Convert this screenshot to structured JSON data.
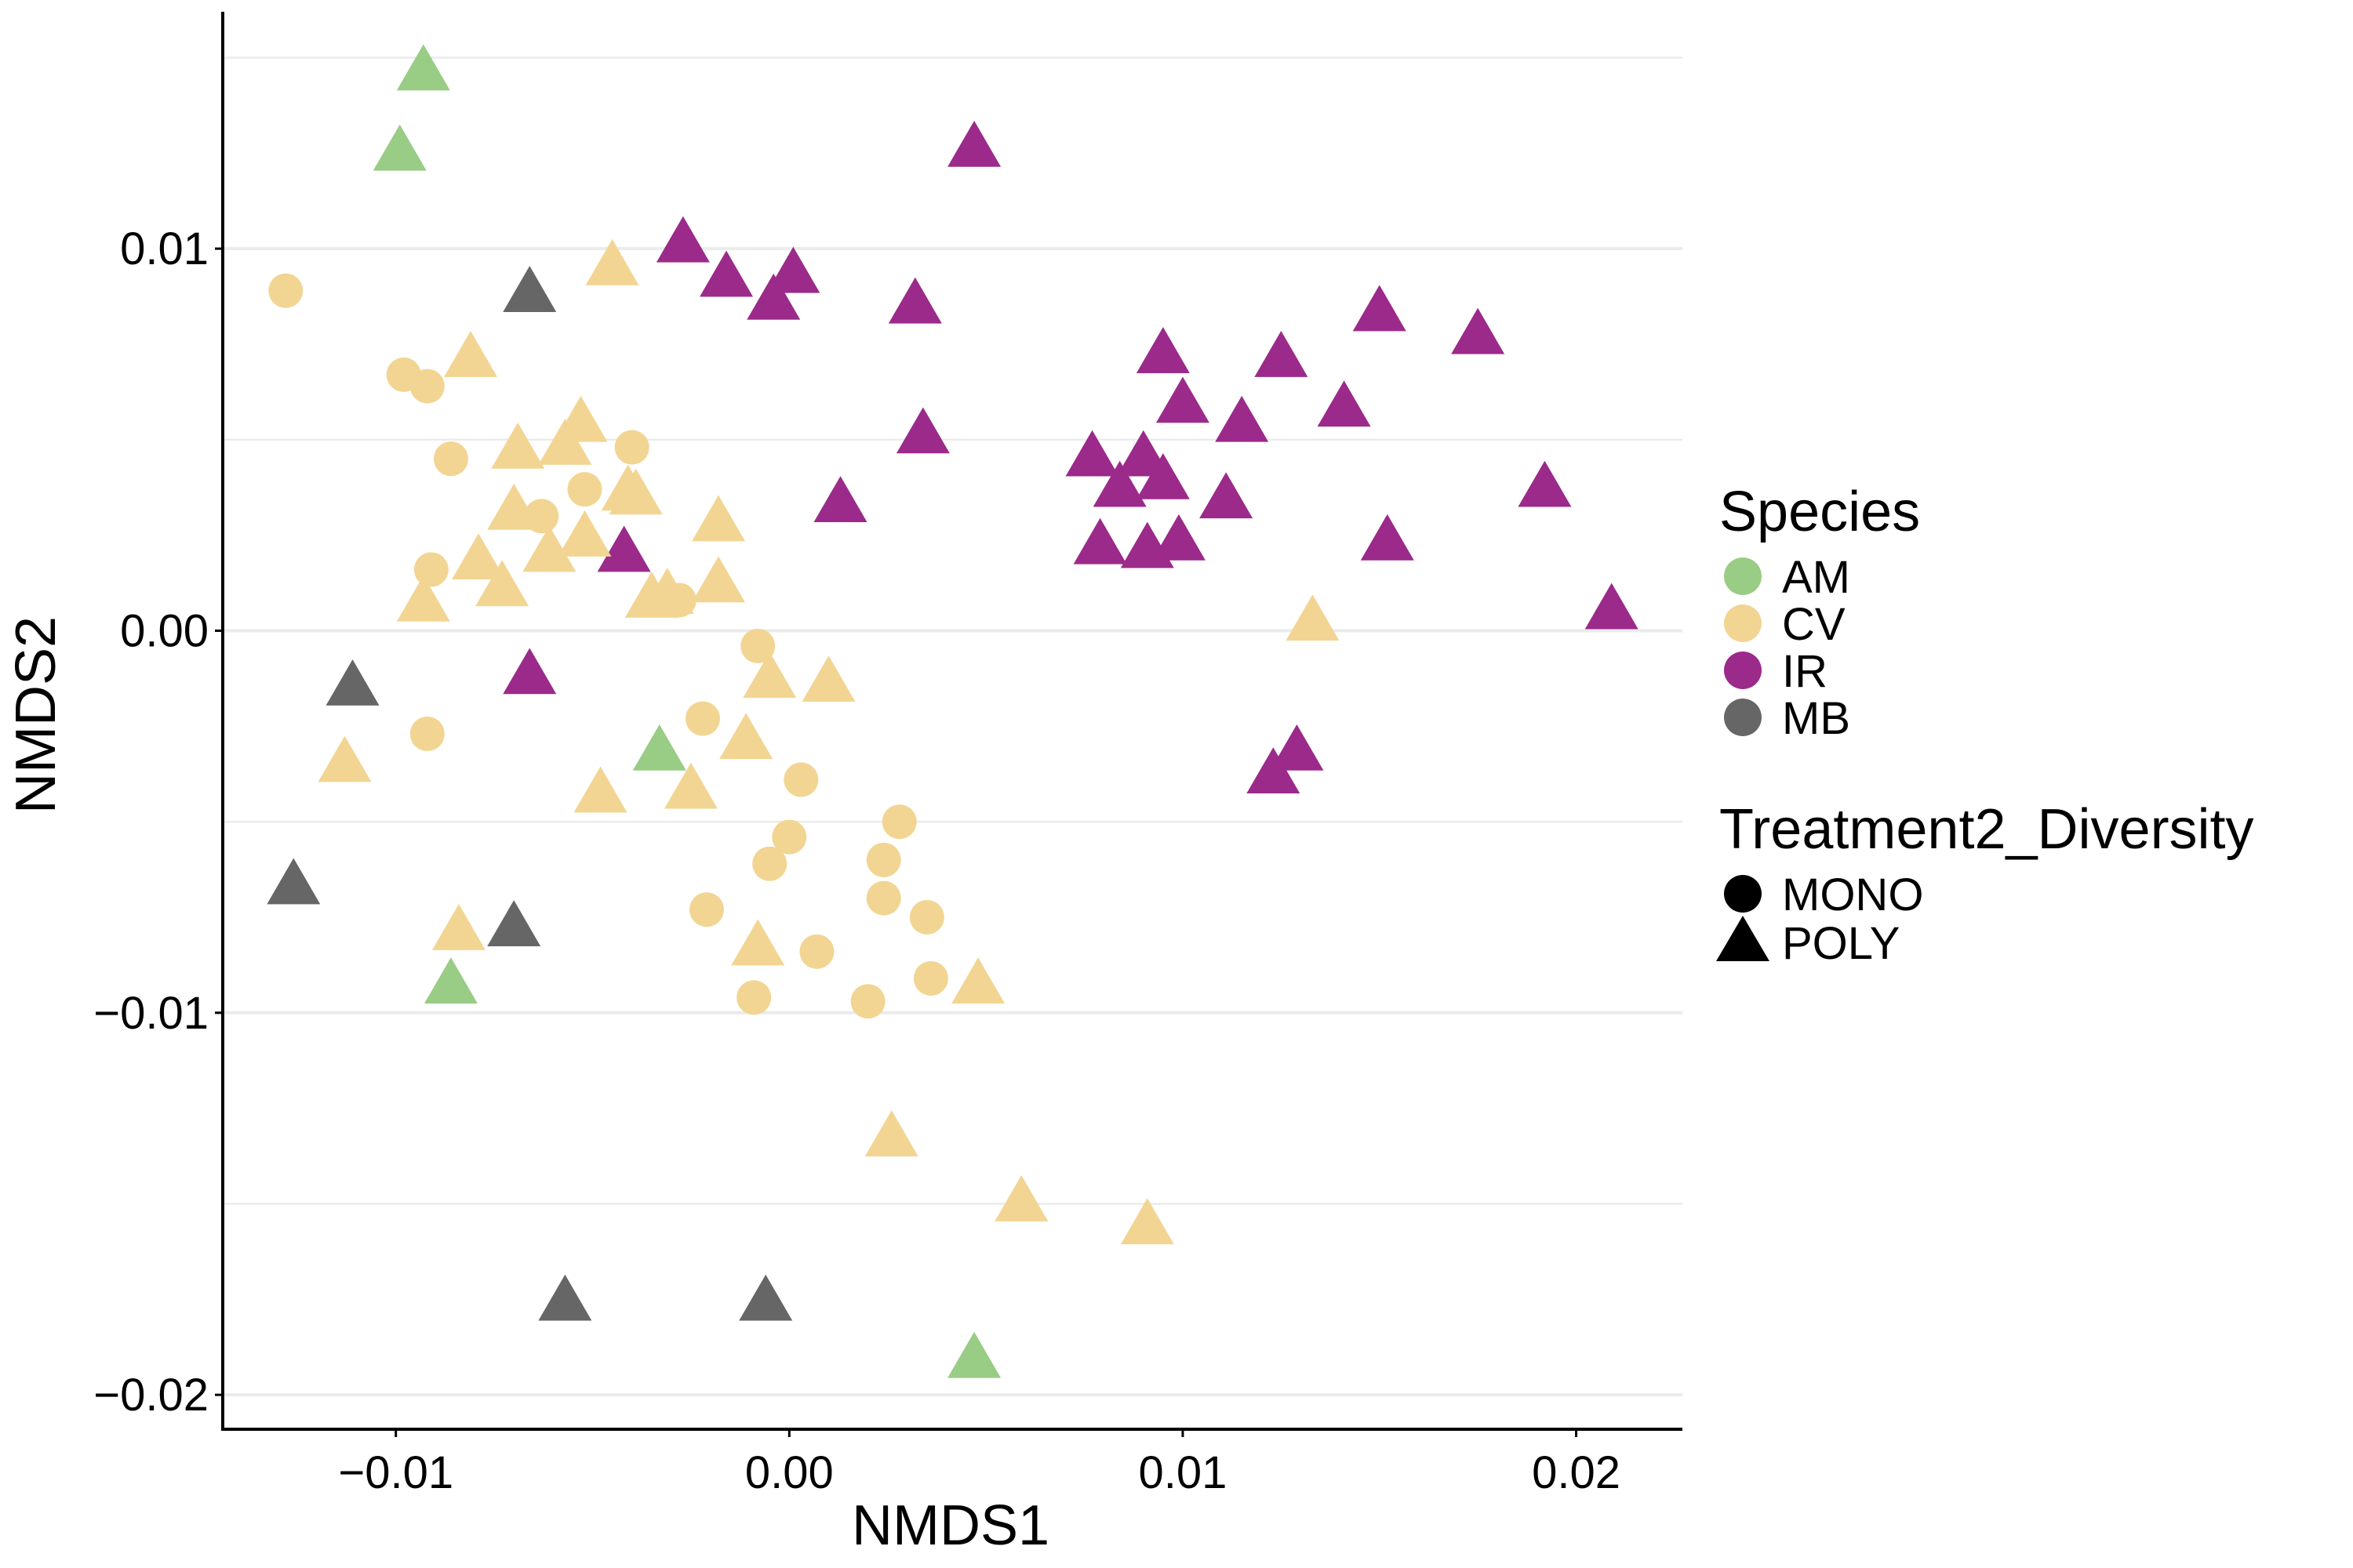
{
  "chart_data": {
    "type": "scatter",
    "title": "",
    "xlabel": "NMDS1",
    "ylabel": "NMDS2",
    "xlim": [
      -0.0144,
      0.0227
    ],
    "ylim": [
      -0.0209,
      0.0162
    ],
    "x_ticks": [
      -0.01,
      0.0,
      0.01,
      0.02
    ],
    "x_tick_labels": [
      "−0.01",
      "0.00",
      "0.01",
      "0.02"
    ],
    "y_ticks": [
      -0.02,
      -0.01,
      0.0,
      0.01
    ],
    "y_tick_labels": [
      "−0.02",
      "−0.01",
      "0.00",
      "0.01"
    ],
    "grid": "horizontal major and minor",
    "legend_placement": "right",
    "legends": [
      {
        "title": "Species",
        "entries": [
          {
            "label": "AM",
            "color": "#99CC85"
          },
          {
            "label": "CV",
            "color": "#F2D592"
          },
          {
            "label": "IR",
            "color": "#9B2A8A"
          },
          {
            "label": "MB",
            "color": "#666666"
          }
        ]
      },
      {
        "title": "Treatment2_Diversity",
        "entries": [
          {
            "label": "MONO",
            "shape": "circle"
          },
          {
            "label": "POLY",
            "shape": "triangle"
          }
        ]
      }
    ],
    "series": [
      {
        "species": "AM",
        "shape": "triangle",
        "points": [
          [
            -0.0093,
            0.0146
          ],
          [
            -0.0099,
            0.0125
          ],
          [
            -0.0033,
            -0.0032
          ],
          [
            -0.0086,
            -0.0093
          ],
          [
            0.0047,
            -0.0191
          ]
        ]
      },
      {
        "species": "MB",
        "shape": "triangle",
        "points": [
          [
            -0.0066,
            0.0088
          ],
          [
            -0.0111,
            -0.0015
          ],
          [
            -0.0126,
            -0.0067
          ],
          [
            -0.007,
            -0.0078
          ],
          [
            -0.0057,
            -0.0176
          ],
          [
            -0.0006,
            -0.0176
          ]
        ]
      },
      {
        "species": "IR",
        "shape": "triangle",
        "points": [
          [
            0.0047,
            0.0126
          ],
          [
            -0.0027,
            0.0101
          ],
          [
            -0.0016,
            0.0092
          ],
          [
            -0.0004,
            0.0086
          ],
          [
            0.0001,
            0.0093
          ],
          [
            0.0032,
            0.0085
          ],
          [
            0.0034,
            0.0051
          ],
          [
            0.0013,
            0.0033
          ],
          [
            -0.0042,
            0.002
          ],
          [
            -0.0066,
            -0.0012
          ],
          [
            0.0077,
            0.0045
          ],
          [
            0.0084,
            0.0037
          ],
          [
            0.009,
            0.0045
          ],
          [
            0.0095,
            0.0072
          ],
          [
            0.01,
            0.0059
          ],
          [
            0.0095,
            0.0039
          ],
          [
            0.0079,
            0.0022
          ],
          [
            0.0091,
            0.0021
          ],
          [
            0.0099,
            0.0023
          ],
          [
            0.0111,
            0.0034
          ],
          [
            0.0115,
            0.0054
          ],
          [
            0.0125,
            0.0071
          ],
          [
            0.0141,
            0.0058
          ],
          [
            0.015,
            0.0083
          ],
          [
            0.0175,
            0.0077
          ],
          [
            0.0192,
            0.0037
          ],
          [
            0.0152,
            0.0023
          ],
          [
            0.0209,
            0.0005
          ],
          [
            0.0129,
            -0.0032
          ],
          [
            0.0123,
            -0.0038
          ]
        ]
      },
      {
        "species": "CV",
        "shape": "circle",
        "points": [
          [
            -0.0128,
            0.0089
          ],
          [
            -0.0098,
            0.0067
          ],
          [
            -0.0092,
            0.0064
          ],
          [
            -0.0086,
            0.0045
          ],
          [
            -0.004,
            0.0048
          ],
          [
            -0.0052,
            0.0037
          ],
          [
            -0.0063,
            0.003
          ],
          [
            -0.0091,
            0.0016
          ],
          [
            -0.0028,
            0.0008
          ],
          [
            -0.0092,
            -0.0027
          ],
          [
            -0.0008,
            -0.0004
          ],
          [
            -0.0022,
            -0.0023
          ],
          [
            0.0003,
            -0.0039
          ],
          [
            -0.0,
            -0.0054
          ],
          [
            -0.0005,
            -0.0061
          ],
          [
            0.0028,
            -0.005
          ],
          [
            0.0024,
            -0.006
          ],
          [
            0.0024,
            -0.007
          ],
          [
            0.0035,
            -0.0075
          ],
          [
            -0.0021,
            -0.0073
          ],
          [
            0.0007,
            -0.0084
          ],
          [
            0.0036,
            -0.0091
          ],
          [
            -0.0009,
            -0.0096
          ],
          [
            0.002,
            -0.0097
          ]
        ]
      },
      {
        "species": "CV",
        "shape": "triangle",
        "points": [
          [
            -0.0045,
            0.0095
          ],
          [
            -0.0081,
            0.0071
          ],
          [
            -0.0069,
            0.0047
          ],
          [
            -0.0053,
            0.0054
          ],
          [
            -0.0057,
            0.0048
          ],
          [
            -0.0041,
            0.0036
          ],
          [
            -0.0039,
            0.0035
          ],
          [
            -0.007,
            0.0031
          ],
          [
            -0.0061,
            0.002
          ],
          [
            -0.0052,
            0.0024
          ],
          [
            -0.0079,
            0.0018
          ],
          [
            -0.0073,
            0.0011
          ],
          [
            -0.0093,
            0.0007
          ],
          [
            -0.0018,
            0.0028
          ],
          [
            -0.0018,
            0.0012
          ],
          [
            -0.0035,
            0.0008
          ],
          [
            -0.0031,
            0.0009
          ],
          [
            -0.0005,
            -0.0013
          ],
          [
            0.001,
            -0.0014
          ],
          [
            -0.0011,
            -0.0029
          ],
          [
            -0.0048,
            -0.0043
          ],
          [
            -0.0025,
            -0.0042
          ],
          [
            -0.0113,
            -0.0035
          ],
          [
            -0.0084,
            -0.0079
          ],
          [
            -0.0008,
            -0.0083
          ],
          [
            0.0048,
            -0.0093
          ],
          [
            0.0026,
            -0.0133
          ],
          [
            0.0059,
            -0.015
          ],
          [
            0.0091,
            -0.0156
          ],
          [
            0.0133,
            0.0002
          ]
        ]
      }
    ]
  }
}
